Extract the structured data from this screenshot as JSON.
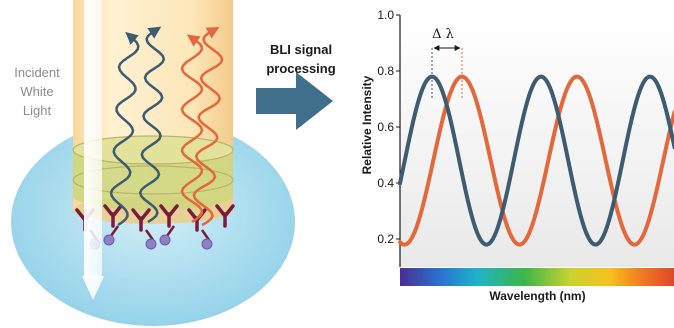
{
  "left_panel": {
    "incident_label": "Incident\nWhite\nLight",
    "colors": {
      "tube": "#fde3b0",
      "tube_edge": "#f3c98a",
      "ellipse": "#9fd8ec",
      "band": "#c8d37a",
      "antibody": "#7a1b3b",
      "bead": "#8f80c4",
      "wave_blue": "#3d5c72",
      "wave_orange": "#e3683c"
    }
  },
  "middle": {
    "title": "BLI signal\nprocessing",
    "arrow_color": "#3f6f8b"
  },
  "chart_data": {
    "type": "line",
    "ylabel": "Relative Intensity",
    "xlabel": "Wavelength (nm)",
    "ylim": [
      0.15,
      1.0
    ],
    "yticks": [
      "1.0",
      "0.8",
      "0.6",
      "0.4",
      "0.2"
    ],
    "annotation": "Δ λ",
    "series": [
      {
        "color": "#3d5c72",
        "peaks_y": [
          0.78,
          0.78
        ],
        "troughs_y": [
          0.18,
          0.18
        ]
      },
      {
        "color": "#e3683c",
        "peaks_y": [
          0.79,
          0.79
        ],
        "troughs_y": [
          0.18,
          0.18
        ]
      }
    ],
    "gradient_bar": [
      "#4b2f8f",
      "#2a6fd0",
      "#1fb3c9",
      "#3bb54a",
      "#c9d22e",
      "#f6c11e",
      "#f07a22",
      "#e0442a"
    ]
  }
}
